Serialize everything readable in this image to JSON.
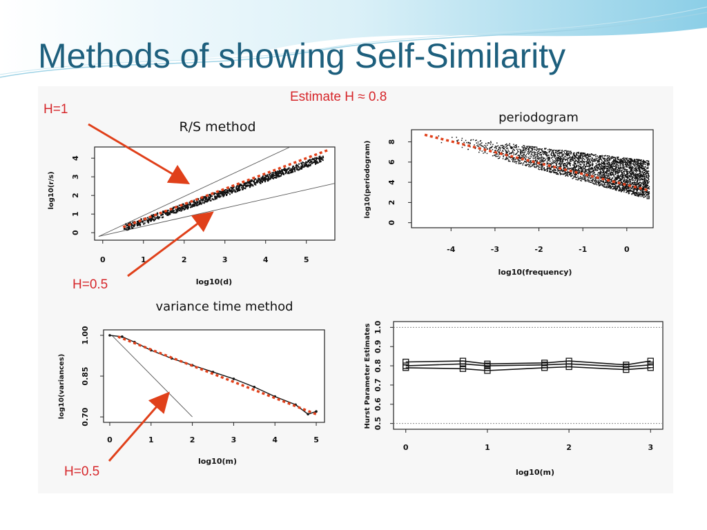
{
  "slide": {
    "title": "Methods of showing Self-Similarity",
    "annotations": {
      "estimate": "Estimate H ≈ 0.8",
      "h1": "H=1",
      "h05_rs": "H=0.5",
      "h05_vt": "H=0.5"
    },
    "colors": {
      "title": "#1d5f7d",
      "annotation": "#d6262a",
      "fit_line": "#e0401a",
      "header": "#7fc9e4"
    }
  },
  "chart_data": [
    {
      "id": "rs",
      "type": "scatter",
      "title": "R/S method",
      "xlabel": "log10(d)",
      "ylabel": "log10(r/s)",
      "xlim": [
        -0.2,
        5.7
      ],
      "ylim": [
        -0.4,
        4.6
      ],
      "xticks": [
        "0",
        "1",
        "2",
        "3",
        "4",
        "5"
      ],
      "yticks": [
        "0",
        "1",
        "2",
        "3",
        "4"
      ],
      "reference_lines": [
        {
          "label": "H=1",
          "points": [
            [
              -0.1,
              -0.2
            ],
            [
              4.6,
              4.6
            ]
          ]
        },
        {
          "label": "H=0.5",
          "points": [
            [
              -0.1,
              -0.2
            ],
            [
              5.7,
              2.65
            ]
          ]
        }
      ],
      "fit_line": {
        "points": [
          [
            0.5,
            0.3
          ],
          [
            5.55,
            4.45
          ]
        ]
      },
      "series": [
        {
          "x_range": [
            0.5,
            5.4
          ],
          "y_range": [
            0.25,
            4.0
          ]
        }
      ]
    },
    {
      "id": "periodogram",
      "type": "scatter",
      "title": "periodogram",
      "xlabel": "log10(frequency)",
      "ylabel": "log10(periodogram)",
      "xlim": [
        -4.9,
        0.6
      ],
      "ylim": [
        -0.5,
        9.2
      ],
      "xticks": [
        "-4",
        "-3",
        "-2",
        "-1",
        "0"
      ],
      "yticks": [
        "0",
        "2",
        "4",
        "6",
        "8"
      ],
      "fit_line": {
        "points": [
          [
            -4.6,
            8.7
          ],
          [
            0.5,
            3.2
          ]
        ]
      },
      "series": [
        {
          "x_range": [
            -4.5,
            0.5
          ],
          "y_range": [
            1.0,
            8.5
          ]
        }
      ]
    },
    {
      "id": "variance_time",
      "type": "line",
      "title": "variance time method",
      "xlabel": "log10(m)",
      "ylabel": "log10(variances)",
      "xlim": [
        -0.15,
        5.2
      ],
      "ylim": [
        0.68,
        1.02
      ],
      "xticks": [
        "0",
        "1",
        "2",
        "3",
        "4",
        "5"
      ],
      "yticks": [
        "0.70",
        "0.85",
        "1.00"
      ],
      "reference_lines": [
        {
          "label": "H=0.5",
          "points": [
            [
              0.05,
              1.0
            ],
            [
              2.0,
              0.7
            ]
          ]
        }
      ],
      "fit_line": {
        "points": [
          [
            0.2,
            0.995
          ],
          [
            5.0,
            0.71
          ]
        ]
      },
      "series": [
        {
          "x": [
            0.0,
            0.3,
            0.6,
            1.0,
            1.5,
            2.0,
            2.5,
            3.0,
            3.5,
            4.0,
            4.5,
            4.8,
            5.0
          ],
          "y": [
            1.0,
            0.995,
            0.975,
            0.945,
            0.915,
            0.89,
            0.865,
            0.84,
            0.81,
            0.775,
            0.745,
            0.71,
            0.72
          ]
        }
      ]
    },
    {
      "id": "hurst",
      "type": "line",
      "xlabel": "log10(m)",
      "ylabel": "Hurst Parameter Estimates",
      "xlim": [
        -0.15,
        3.15
      ],
      "ylim": [
        0.47,
        1.03
      ],
      "xticks": [
        "0",
        "1",
        "2",
        "3"
      ],
      "yticks": [
        "1.0",
        "0.9",
        "0.8",
        "0.7",
        "0.6",
        "0.5"
      ],
      "reference_lines": [
        {
          "y": 1.0
        },
        {
          "y": 0.5
        }
      ],
      "series": [
        {
          "x": [
            0,
            0.7,
            1.0,
            1.7,
            2.0,
            2.7,
            3.0
          ],
          "y": [
            0.82,
            0.825,
            0.81,
            0.815,
            0.825,
            0.805,
            0.825
          ]
        },
        {
          "x": [
            0,
            0.7,
            1.0,
            1.7,
            2.0,
            2.7,
            3.0
          ],
          "y": [
            0.8,
            0.81,
            0.8,
            0.805,
            0.81,
            0.795,
            0.805
          ]
        },
        {
          "x": [
            0,
            0.7,
            1.0,
            1.7,
            2.0,
            2.7,
            3.0
          ],
          "y": [
            0.79,
            0.785,
            0.775,
            0.79,
            0.795,
            0.78,
            0.79
          ]
        }
      ]
    }
  ]
}
